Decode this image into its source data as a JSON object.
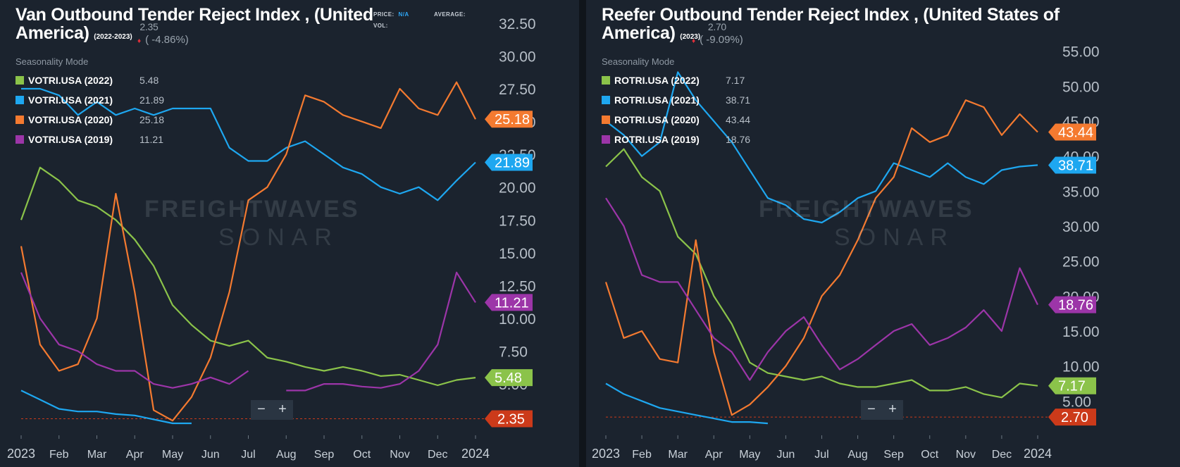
{
  "panels": {
    "left": {
      "title": "Van Outbound Tender Reject Index , (United America)",
      "title_line1": "Van Outbound Tender Reject Index , (United",
      "title_line2": "America)",
      "date_range": "(2022-2023)",
      "last_value": "2.35",
      "change": "( -4.86%)",
      "price_label": "PRICE:",
      "price_value": "N/A",
      "vol_label": "VOL:",
      "average_label": "AVERAGE:",
      "seasonality": "Seasonality Mode",
      "legend": [
        {
          "name": "VOTRI.USA (2022)",
          "value": "5.48"
        },
        {
          "name": "VOTRI.USA (2021)",
          "value": "21.89"
        },
        {
          "name": "VOTRI.USA (2020)",
          "value": "25.18"
        },
        {
          "name": "VOTRI.USA (2019)",
          "value": "11.21"
        }
      ],
      "watermark_1": "FREIGHTWAVES",
      "watermark_2": "SONAR",
      "zoom_minus": "−",
      "zoom_plus": "+"
    },
    "right": {
      "title": "Reefer Outbound Tender Reject Index , (United States of America)",
      "title_line1": "Reefer Outbound Tender Reject Index , (United States of",
      "title_line2": "America)",
      "date_range": "(2023)",
      "last_value": "2.70",
      "change": "( -9.09%)",
      "seasonality": "Seasonality Mode",
      "legend": [
        {
          "name": "ROTRI.USA (2022)",
          "value": "7.17"
        },
        {
          "name": "ROTRI.USA (2021)",
          "value": "38.71"
        },
        {
          "name": "ROTRI.USA (2020)",
          "value": "43.44"
        },
        {
          "name": "ROTRI.USA (2019)",
          "value": "18.76"
        }
      ],
      "watermark_1": "FREIGHTWAVES",
      "watermark_2": "SONAR",
      "zoom_minus": "−",
      "zoom_plus": "+"
    }
  },
  "colors": {
    "series_2022": "#8bc34a",
    "series_2021": "#1ea7f0",
    "series_2020": "#f47a30",
    "series_2019": "#9c35a8",
    "current": "#cc3a1a",
    "background": "#1b232e",
    "text": "#b7bfc8"
  },
  "chart_data": [
    {
      "type": "line",
      "title": "Van Outbound Tender Reject Index , (United America)",
      "x_ticks": [
        "2023",
        "Feb",
        "Mar",
        "Apr",
        "May",
        "Jun",
        "Jul",
        "Aug",
        "Sep",
        "Oct",
        "Nov",
        "Dec",
        "2024"
      ],
      "y_ticks": [
        "2.35",
        "5.00",
        "7.50",
        "10.00",
        "12.50",
        "15.00",
        "17.50",
        "20.00",
        "22.50",
        "25.00",
        "27.50",
        "30.00",
        "32.50"
      ],
      "ylim": [
        1.3,
        33.3
      ],
      "grid": false,
      "legend_position": "top-left",
      "x": [
        0,
        0.5,
        1,
        1.5,
        2,
        2.5,
        3,
        3.5,
        4,
        4.5,
        5,
        5.5,
        6,
        6.5,
        7,
        7.5,
        8,
        8.5,
        9,
        9.5,
        10,
        10.5,
        11,
        11.5,
        12
      ],
      "series": [
        {
          "name": "VOTRI.USA (2022)",
          "color": "#8bc34a",
          "last_label": "5.48",
          "values": [
            17.5,
            21.5,
            20.5,
            19.0,
            18.5,
            17.5,
            16.0,
            14.0,
            11.0,
            9.5,
            8.3,
            7.9,
            8.3,
            7.0,
            6.7,
            6.3,
            6.0,
            6.3,
            6.0,
            5.6,
            5.7,
            5.3,
            4.9,
            5.3,
            5.48
          ]
        },
        {
          "name": "VOTRI.USA (2021)",
          "color": "#1ea7f0",
          "last_label": "21.89",
          "values": [
            4.5,
            3.8,
            3.1,
            2.9,
            2.9,
            2.7,
            2.6,
            2.3,
            2.0,
            2.0,
            null,
            null,
            null,
            null,
            null,
            null,
            null,
            null,
            null,
            null,
            null,
            null,
            null,
            null,
            null
          ],
          "values_upper": [
            27.5,
            27.5,
            27.0,
            25.5,
            26.5,
            25.5,
            26.0,
            25.5,
            26.0,
            26.0,
            26.0,
            23.0,
            22.0,
            22.0,
            23.0,
            23.5,
            22.5,
            21.5,
            21.0,
            20.0,
            19.5,
            20.0,
            19.0,
            20.5,
            21.89
          ]
        },
        {
          "name": "VOTRI.USA (2020)",
          "color": "#f47a30",
          "last_label": "25.18",
          "values": [
            15.5,
            8.0,
            6.0,
            6.5,
            10.0,
            19.5,
            12.0,
            3.0,
            2.2,
            4.0,
            7.0,
            12.0,
            19.0,
            20.0,
            22.5,
            27.0,
            26.5,
            25.5,
            25.0,
            24.5,
            27.5,
            26.0,
            25.5,
            28.0,
            25.18
          ]
        },
        {
          "name": "VOTRI.USA (2019)",
          "color": "#9c35a8",
          "last_label": "11.21",
          "values": [
            13.5,
            10.0,
            8.0,
            7.5,
            6.5,
            6.0,
            6.0,
            5.0,
            4.7,
            5.0,
            5.5,
            5.0,
            6.0,
            null,
            4.5,
            4.5,
            5.0,
            5.0,
            4.8,
            4.7,
            5.0,
            6.0,
            8.0,
            13.5,
            11.21
          ]
        }
      ],
      "current_label": "2.35"
    },
    {
      "type": "line",
      "title": "Reefer Outbound Tender Reject Index , (United States of America)",
      "x_ticks": [
        "2023",
        "Feb",
        "Mar",
        "Apr",
        "May",
        "Jun",
        "Jul",
        "Aug",
        "Sep",
        "Oct",
        "Nov",
        "Dec",
        "2024"
      ],
      "y_ticks": [
        "2.70",
        "5.00",
        "10.00",
        "15.00",
        "20.00",
        "25.00",
        "30.00",
        "35.00",
        "40.00",
        "45.00",
        "50.00",
        "55.00"
      ],
      "ylim": [
        0.5,
        60.5
      ],
      "grid": false,
      "legend_position": "top-left",
      "x": [
        0,
        0.5,
        1,
        1.5,
        2,
        2.5,
        3,
        3.5,
        4,
        4.5,
        5,
        5.5,
        6,
        6.5,
        7,
        7.5,
        8,
        8.5,
        9,
        9.5,
        10,
        10.5,
        11,
        11.5,
        12
      ],
      "series": [
        {
          "name": "ROTRI.USA (2022)",
          "color": "#8bc34a",
          "last_label": "7.17",
          "values": [
            38.5,
            41.0,
            37.0,
            35.0,
            28.5,
            26.0,
            20.0,
            16.0,
            10.5,
            9.0,
            8.5,
            8.0,
            8.5,
            7.5,
            7.0,
            7.0,
            7.5,
            8.0,
            6.5,
            6.5,
            7.0,
            6.0,
            5.5,
            7.5,
            7.17
          ]
        },
        {
          "name": "ROTRI.USA (2021)",
          "color": "#1ea7f0",
          "last_label": "38.71",
          "values": [
            7.5,
            6.0,
            5.0,
            4.0,
            3.5,
            3.0,
            2.5,
            2.0,
            2.0,
            1.8,
            null,
            null,
            null,
            null,
            null,
            null,
            null,
            null,
            null,
            null,
            null,
            null,
            null,
            null,
            null
          ],
          "values_upper": [
            45.0,
            43.0,
            40.0,
            42.0,
            52.0,
            48.0,
            45.0,
            42.0,
            38.0,
            34.0,
            33.0,
            31.0,
            30.5,
            32.0,
            34.0,
            35.0,
            39.0,
            38.0,
            37.0,
            39.0,
            37.0,
            36.0,
            38.0,
            38.5,
            38.71
          ]
        },
        {
          "name": "ROTRI.USA (2020)",
          "color": "#f47a30",
          "last_label": "43.44",
          "values": [
            22.0,
            14.0,
            15.0,
            11.0,
            10.5,
            28.0,
            12.0,
            3.0,
            4.5,
            7.0,
            10.0,
            14.0,
            20.0,
            23.0,
            28.0,
            34.0,
            37.0,
            44.0,
            42.0,
            43.0,
            48.0,
            47.0,
            43.0,
            46.0,
            43.44
          ]
        },
        {
          "name": "ROTRI.USA (2019)",
          "color": "#9c35a8",
          "last_label": "18.76",
          "values": [
            34.0,
            30.0,
            23.0,
            22.0,
            22.0,
            18.0,
            14.0,
            12.0,
            8.0,
            12.0,
            15.0,
            17.0,
            13.0,
            9.5,
            11.0,
            13.0,
            15.0,
            16.0,
            13.0,
            14.0,
            15.5,
            18.0,
            15.0,
            24.0,
            18.76
          ]
        }
      ],
      "current_label": "2.70"
    }
  ]
}
